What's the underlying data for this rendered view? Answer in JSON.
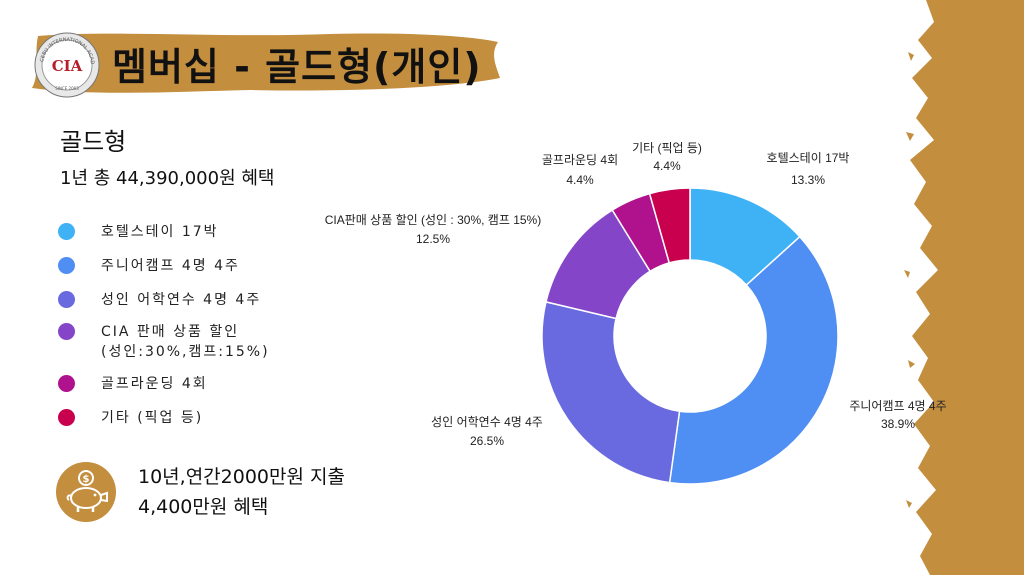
{
  "header": {
    "title": "멤버십 - 골드형(개인)"
  },
  "logo": {
    "text": "CIA",
    "ring_text": "CEBU INTERNATIONAL ACADEMY",
    "since_text": "SINCE 2003"
  },
  "summary": {
    "heading": "골드형",
    "total": "1년 총 44,390,000원 혜택"
  },
  "legend": [
    {
      "label": "호텔스테이 17박",
      "color": "#3fb1f5"
    },
    {
      "label": "주니어캠프 4명 4주",
      "color": "#4f8ef2"
    },
    {
      "label": "성인 어학연수 4명 4주",
      "color": "#6a6ae0"
    },
    {
      "label": "CIA 판매 상품 할인\n(성인:30%,캠프:15%)",
      "color": "#8545c9"
    },
    {
      "label": "골프라운딩 4회",
      "color": "#b0128d"
    },
    {
      "label": "기타 (픽업 등)",
      "color": "#c8004d"
    }
  ],
  "savings": {
    "icon": "piggy-bank-icon",
    "line1": "10년,연간2000만원 지출",
    "line2": "4,400만원 혜택"
  },
  "colors": {
    "gold": "#c38e3e",
    "white": "#ffffff"
  },
  "chart_data": {
    "type": "pie",
    "style": "donut",
    "slices": [
      {
        "name": "호텔스테이 17박",
        "value": 13.3,
        "label": "13.3%",
        "color": "#3fb1f5"
      },
      {
        "name": "주니어캠프 4명 4주",
        "value": 38.9,
        "label": "38.9%",
        "color": "#4f8ef2"
      },
      {
        "name": "성인 어학연수 4명 4주",
        "value": 26.5,
        "label": "26.5%",
        "color": "#6a6ae0"
      },
      {
        "name": "CIA판매 상품 할인 (성인 : 30%, 캠프 15%)",
        "value": 12.5,
        "label": "12.5%",
        "color": "#8545c9"
      },
      {
        "name": "골프라운딩 4회",
        "value": 4.4,
        "label": "4.4%",
        "color": "#b0128d"
      },
      {
        "name": "기타 (픽업 등)",
        "value": 4.4,
        "label": "4.4%",
        "color": "#c8004d"
      }
    ]
  }
}
